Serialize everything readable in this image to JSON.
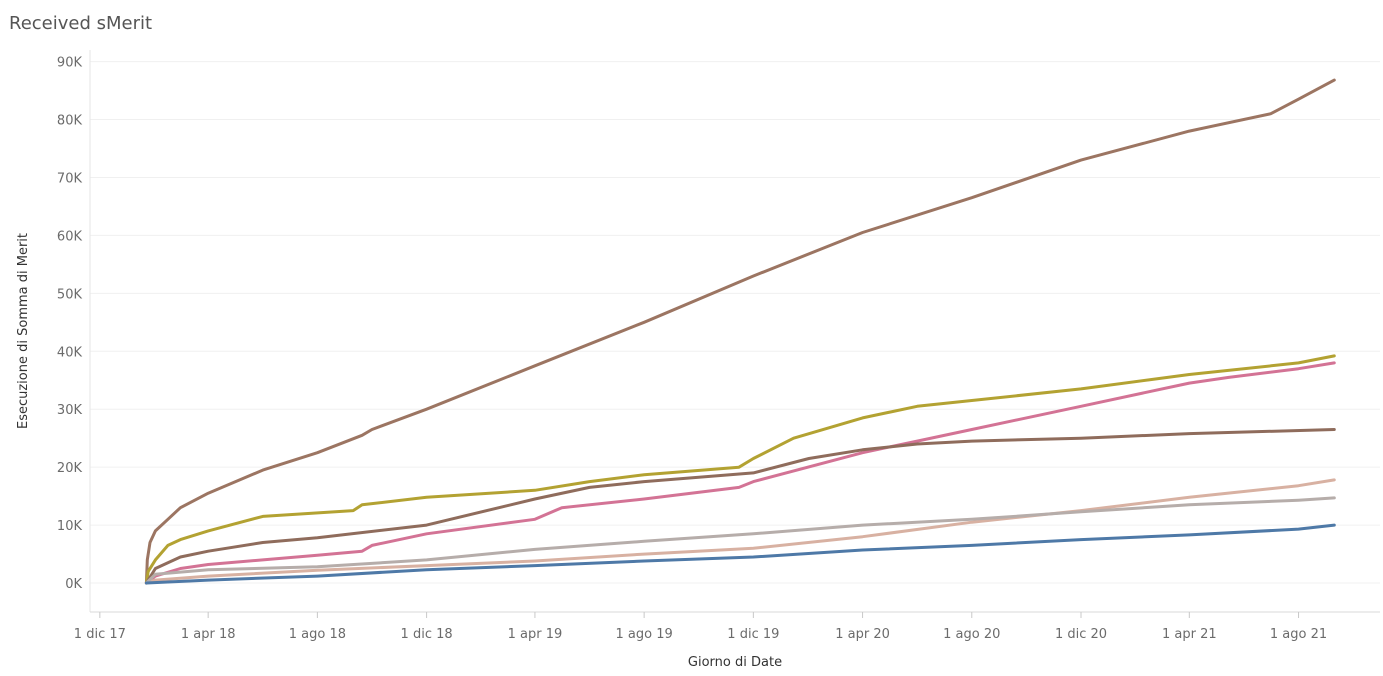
{
  "title": "Received sMerit",
  "chart_data": {
    "type": "line",
    "title": "Received sMerit",
    "xlabel": "Giorno di Date",
    "ylabel": "Esecuzione di Somma di Merit",
    "ylim": [
      -5000,
      92000
    ],
    "xlim": [
      "2017-11-20",
      "2021-10-31"
    ],
    "grid": true,
    "y_ticks": [
      {
        "value": 0,
        "label": "0K"
      },
      {
        "value": 10000,
        "label": "10K"
      },
      {
        "value": 20000,
        "label": "20K"
      },
      {
        "value": 30000,
        "label": "30K"
      },
      {
        "value": 40000,
        "label": "40K"
      },
      {
        "value": 50000,
        "label": "50K"
      },
      {
        "value": 60000,
        "label": "60K"
      },
      {
        "value": 70000,
        "label": "70K"
      },
      {
        "value": 80000,
        "label": "80K"
      },
      {
        "value": 90000,
        "label": "90K"
      }
    ],
    "x_ticks": [
      {
        "date": "2017-12-01",
        "label": "1 dic 17"
      },
      {
        "date": "2018-04-01",
        "label": "1 apr 18"
      },
      {
        "date": "2018-08-01",
        "label": "1 ago 18"
      },
      {
        "date": "2018-12-01",
        "label": "1 dic 18"
      },
      {
        "date": "2019-04-01",
        "label": "1 apr 19"
      },
      {
        "date": "2019-08-01",
        "label": "1 ago 19"
      },
      {
        "date": "2019-12-01",
        "label": "1 dic 19"
      },
      {
        "date": "2020-04-01",
        "label": "1 apr 20"
      },
      {
        "date": "2020-08-01",
        "label": "1 ago 20"
      },
      {
        "date": "2020-12-01",
        "label": "1 dic 20"
      },
      {
        "date": "2021-04-01",
        "label": "1 apr 21"
      },
      {
        "date": "2021-08-01",
        "label": "1 ago 21"
      }
    ],
    "series": [
      {
        "color": "#9c7562",
        "points": [
          [
            "2018-01-22",
            0
          ],
          [
            "2018-01-23",
            4000
          ],
          [
            "2018-01-26",
            7000
          ],
          [
            "2018-02-01",
            9000
          ],
          [
            "2018-02-15",
            11000
          ],
          [
            "2018-03-01",
            13000
          ],
          [
            "2018-04-01",
            15500
          ],
          [
            "2018-06-01",
            19500
          ],
          [
            "2018-08-01",
            22500
          ],
          [
            "2018-09-20",
            25500
          ],
          [
            "2018-10-01",
            26500
          ],
          [
            "2018-12-01",
            30000
          ],
          [
            "2019-04-01",
            37500
          ],
          [
            "2019-08-01",
            45000
          ],
          [
            "2019-12-01",
            53000
          ],
          [
            "2020-04-01",
            60500
          ],
          [
            "2020-08-01",
            66500
          ],
          [
            "2020-12-01",
            73000
          ],
          [
            "2021-04-01",
            78000
          ],
          [
            "2021-07-01",
            81000
          ],
          [
            "2021-08-01",
            83500
          ],
          [
            "2021-09-10",
            86800
          ]
        ]
      },
      {
        "color": "#b3a232",
        "points": [
          [
            "2018-01-22",
            0
          ],
          [
            "2018-01-24",
            2000
          ],
          [
            "2018-02-01",
            4000
          ],
          [
            "2018-02-15",
            6500
          ],
          [
            "2018-03-01",
            7500
          ],
          [
            "2018-04-01",
            9000
          ],
          [
            "2018-06-01",
            11500
          ],
          [
            "2018-09-10",
            12500
          ],
          [
            "2018-09-20",
            13500
          ],
          [
            "2018-12-01",
            14800
          ],
          [
            "2019-04-01",
            16000
          ],
          [
            "2019-06-01",
            17500
          ],
          [
            "2019-08-01",
            18700
          ],
          [
            "2019-11-15",
            20000
          ],
          [
            "2019-12-01",
            21500
          ],
          [
            "2020-01-15",
            25000
          ],
          [
            "2020-04-01",
            28500
          ],
          [
            "2020-06-01",
            30500
          ],
          [
            "2020-08-01",
            31500
          ],
          [
            "2020-12-01",
            33500
          ],
          [
            "2021-04-01",
            36000
          ],
          [
            "2021-08-01",
            38000
          ],
          [
            "2021-09-10",
            39200
          ]
        ]
      },
      {
        "color": "#d37395",
        "points": [
          [
            "2018-01-22",
            0
          ],
          [
            "2018-02-01",
            1200
          ],
          [
            "2018-03-01",
            2500
          ],
          [
            "2018-04-01",
            3200
          ],
          [
            "2018-06-01",
            4000
          ],
          [
            "2018-08-01",
            4800
          ],
          [
            "2018-09-20",
            5500
          ],
          [
            "2018-10-01",
            6500
          ],
          [
            "2018-12-01",
            8500
          ],
          [
            "2019-04-01",
            11000
          ],
          [
            "2019-05-01",
            13000
          ],
          [
            "2019-08-01",
            14500
          ],
          [
            "2019-11-15",
            16500
          ],
          [
            "2019-12-01",
            17500
          ],
          [
            "2020-04-01",
            22500
          ],
          [
            "2020-06-01",
            24500
          ],
          [
            "2020-08-01",
            26500
          ],
          [
            "2020-12-01",
            30500
          ],
          [
            "2021-04-01",
            34500
          ],
          [
            "2021-05-15",
            35500
          ],
          [
            "2021-08-01",
            37000
          ],
          [
            "2021-09-10",
            38000
          ]
        ]
      },
      {
        "color": "#8f6c5c",
        "points": [
          [
            "2018-01-22",
            0
          ],
          [
            "2018-02-01",
            2500
          ],
          [
            "2018-03-01",
            4500
          ],
          [
            "2018-04-01",
            5500
          ],
          [
            "2018-06-01",
            7000
          ],
          [
            "2018-08-01",
            7800
          ],
          [
            "2018-12-01",
            10000
          ],
          [
            "2019-04-01",
            14500
          ],
          [
            "2019-06-01",
            16500
          ],
          [
            "2019-08-01",
            17500
          ],
          [
            "2019-12-01",
            19000
          ],
          [
            "2020-02-01",
            21500
          ],
          [
            "2020-04-01",
            23000
          ],
          [
            "2020-06-01",
            24000
          ],
          [
            "2020-08-01",
            24500
          ],
          [
            "2020-12-01",
            25000
          ],
          [
            "2021-04-01",
            25800
          ],
          [
            "2021-09-10",
            26500
          ]
        ]
      },
      {
        "color": "#d8b1a2",
        "points": [
          [
            "2018-01-22",
            0
          ],
          [
            "2018-02-01",
            500
          ],
          [
            "2018-04-01",
            1200
          ],
          [
            "2018-08-01",
            2200
          ],
          [
            "2018-12-01",
            3000
          ],
          [
            "2019-04-01",
            3800
          ],
          [
            "2019-08-01",
            5000
          ],
          [
            "2019-12-01",
            6000
          ],
          [
            "2020-04-01",
            8000
          ],
          [
            "2020-08-01",
            10500
          ],
          [
            "2020-12-01",
            12500
          ],
          [
            "2021-04-01",
            14800
          ],
          [
            "2021-08-01",
            16800
          ],
          [
            "2021-09-10",
            17800
          ]
        ]
      },
      {
        "color": "#b6adaa",
        "points": [
          [
            "2018-01-22",
            0
          ],
          [
            "2018-02-01",
            1500
          ],
          [
            "2018-04-01",
            2300
          ],
          [
            "2018-08-01",
            2800
          ],
          [
            "2018-12-01",
            4000
          ],
          [
            "2019-04-01",
            5800
          ],
          [
            "2019-08-01",
            7200
          ],
          [
            "2019-12-01",
            8500
          ],
          [
            "2020-04-01",
            10000
          ],
          [
            "2020-08-01",
            11000
          ],
          [
            "2020-12-01",
            12300
          ],
          [
            "2021-04-01",
            13500
          ],
          [
            "2021-08-01",
            14300
          ],
          [
            "2021-09-10",
            14700
          ]
        ]
      },
      {
        "color": "#4e79a7",
        "points": [
          [
            "2018-01-22",
            0
          ],
          [
            "2018-04-01",
            500
          ],
          [
            "2018-08-01",
            1200
          ],
          [
            "2018-12-01",
            2300
          ],
          [
            "2019-04-01",
            3000
          ],
          [
            "2019-08-01",
            3800
          ],
          [
            "2019-12-01",
            4500
          ],
          [
            "2020-04-01",
            5700
          ],
          [
            "2020-08-01",
            6500
          ],
          [
            "2020-12-01",
            7500
          ],
          [
            "2021-04-01",
            8300
          ],
          [
            "2021-08-01",
            9300
          ],
          [
            "2021-09-10",
            10000
          ]
        ]
      }
    ]
  }
}
